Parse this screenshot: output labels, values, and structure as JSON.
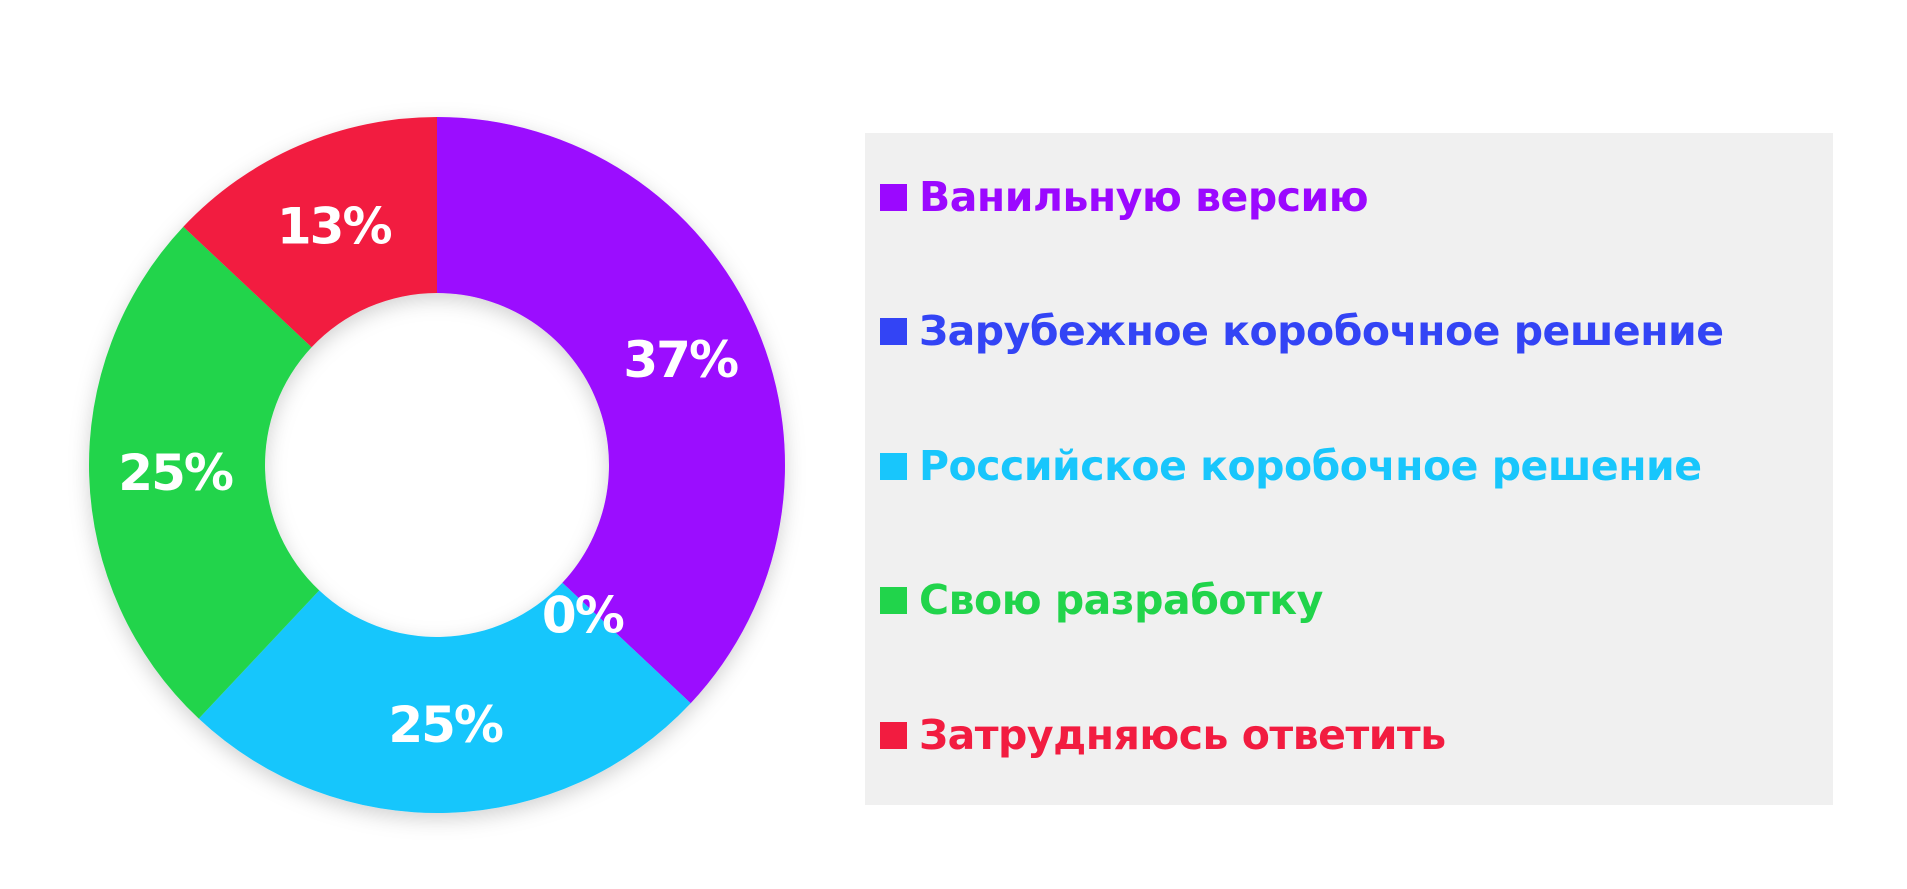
{
  "chart_data": {
    "type": "pie",
    "donut": true,
    "legend_position": "right",
    "categories": [
      "Ванильную версию",
      "Зарубежное коробочное решение",
      "Российское коробочное решение",
      "Свою разработку",
      "Затрудняюсь ответить"
    ],
    "values": [
      37,
      0,
      25,
      25,
      13
    ],
    "labels": [
      "37%",
      "0%",
      "25%",
      "25%",
      "13%"
    ],
    "colors": [
      "#9b08ff",
      "#3344f5",
      "#18c6fc",
      "#21d44b",
      "#f21c40"
    ]
  }
}
